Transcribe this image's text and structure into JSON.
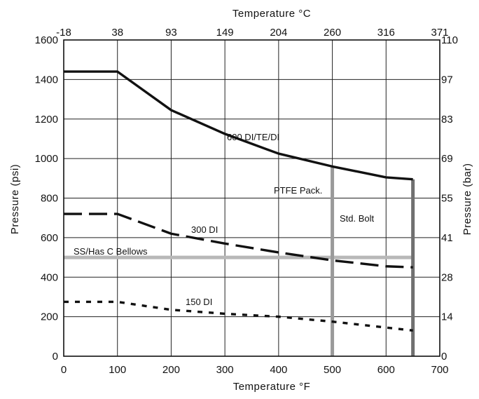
{
  "chart_data": {
    "type": "line",
    "title": "",
    "xlabel": "Temperature °F",
    "xlabel_top": "Temperature °C",
    "ylabel": "Pressure (psi)",
    "ylabel_right": "Pressure (bar)",
    "xlim": [
      0,
      700
    ],
    "ylim": [
      0,
      1600
    ],
    "grid": true,
    "x_ticks": [
      "0",
      "100",
      "200",
      "300",
      "400",
      "500",
      "600",
      "700"
    ],
    "y_ticks": [
      "0",
      "200",
      "400",
      "600",
      "800",
      "1000",
      "1200",
      "1400",
      "1600"
    ],
    "top_ticks": [
      "-18",
      "38",
      "93",
      "149",
      "204",
      "260",
      "316",
      "371"
    ],
    "right_ticks": [
      "0",
      "14",
      "28",
      "41",
      "55",
      "69",
      "83",
      "97",
      "110"
    ],
    "series": [
      {
        "name": "600 DI/TE/DI",
        "style": "solid",
        "color": "#111111",
        "x": [
          0,
          100,
          200,
          300,
          400,
          500,
          600,
          650
        ],
        "y": [
          1440,
          1440,
          1245,
          1125,
          1025,
          960,
          905,
          895
        ]
      },
      {
        "name": "300 DI",
        "style": "dashed",
        "color": "#111111",
        "x": [
          0,
          100,
          200,
          300,
          400,
          500,
          600,
          650
        ],
        "y": [
          720,
          720,
          620,
          570,
          525,
          485,
          455,
          450
        ]
      },
      {
        "name": "150 DI",
        "style": "dotted",
        "color": "#111111",
        "x": [
          0,
          100,
          200,
          300,
          400,
          500,
          600,
          650
        ],
        "y": [
          275,
          275,
          235,
          215,
          200,
          175,
          145,
          130
        ]
      }
    ],
    "limits": [
      {
        "name": "SS/Has C Bellows",
        "orientation": "horizontal",
        "value": 500,
        "from": 0,
        "to": 650,
        "color": "#b8b8b8"
      },
      {
        "name": "PTFE Pack.",
        "orientation": "vertical",
        "value": 500,
        "from": 0,
        "to": 960,
        "color": "#9a9a9a"
      },
      {
        "name": "Std. Bolt",
        "orientation": "vertical",
        "value": 650,
        "from": 0,
        "to": 895,
        "color": "#707070"
      }
    ]
  }
}
